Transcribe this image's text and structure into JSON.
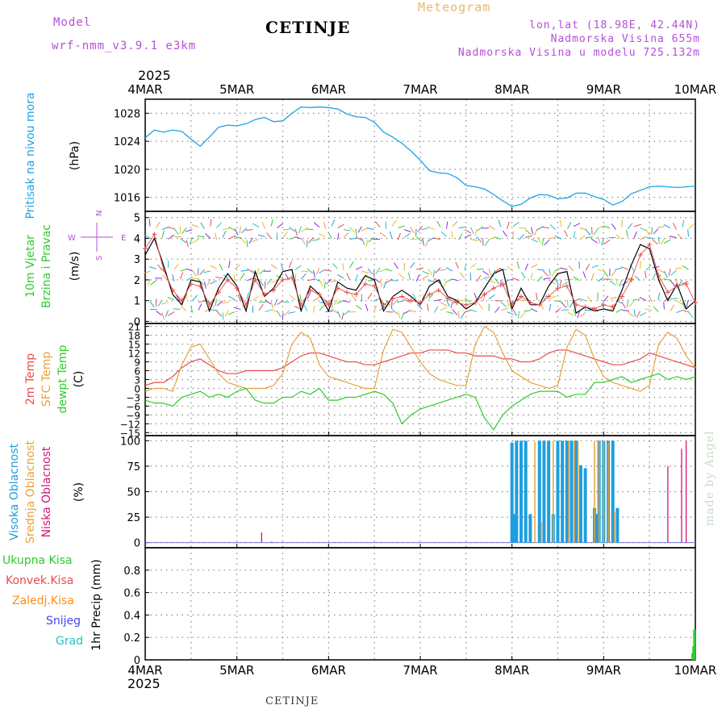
{
  "header": {
    "model_label": "Model",
    "model_name": "wrf-nmm_v3.9.1 e3km",
    "station": "CETINJE",
    "meteogram": "Meteogram",
    "lonlat": "lon,lat (18.98E, 42.44N)",
    "elevation": "Nadmorska Visina 655m",
    "model_elevation": "Nadmorska Visina u modelu 725.132m",
    "year_top": "2025",
    "year_bottom": "2025"
  },
  "footer": {
    "station": "CETINJE",
    "credit": "made by Angel"
  },
  "colors": {
    "pressure": "#1ca3e6",
    "speed": "#000000",
    "gust": "#e84b4b",
    "t2m": "#e84b4b",
    "sfc": "#e8a23a",
    "dew": "#2ecc2e",
    "high": "#1c9fe0",
    "mid": "#e8a23a",
    "low": "#d4157a",
    "total": "#2ecc2e",
    "conv": "#e84b4b",
    "frz": "#ff8c1a",
    "snow": "#4444ee",
    "grad": "#22c4c4"
  },
  "chart_data": [
    {
      "panel": "pressure",
      "type": "line",
      "x_ticks": [
        "4MAR",
        "5MAR",
        "6MAR",
        "7MAR",
        "8MAR",
        "9MAR",
        "10MAR"
      ],
      "ylabel_lines": [
        "Pritisak na nivou mora",
        "(hPa)"
      ],
      "ylim": [
        1014,
        1030
      ],
      "yticks": [
        1016,
        1020,
        1024,
        1028
      ],
      "series": [
        {
          "name": "Pritisak na nivou mora",
          "x": [
            0,
            0.1,
            0.2,
            0.3,
            0.4,
            0.5,
            0.6,
            0.7,
            0.8,
            0.9,
            1.0,
            1.1,
            1.2,
            1.3,
            1.4,
            1.5,
            1.6,
            1.7,
            1.8,
            1.9,
            2.0,
            2.1,
            2.2,
            2.3,
            2.4,
            2.5,
            2.6,
            2.7,
            2.8,
            2.9,
            3.0,
            3.1,
            3.2,
            3.3,
            3.4,
            3.5,
            3.6,
            3.7,
            3.8,
            3.9,
            4.0,
            4.1,
            4.2,
            4.3,
            4.4,
            4.5,
            4.6,
            4.7,
            4.8,
            4.9,
            5.0,
            5.1,
            5.2,
            5.3,
            5.4,
            5.5,
            5.6,
            5.7,
            5.8,
            5.9,
            6.0
          ],
          "values": [
            1024.5,
            1025.6,
            1025.3,
            1025.6,
            1025.4,
            1024.3,
            1023.3,
            1024.6,
            1026.0,
            1026.3,
            1026.2,
            1026.5,
            1027.1,
            1027.4,
            1026.8,
            1026.9,
            1028.0,
            1028.9,
            1028.8,
            1028.9,
            1028.8,
            1028.6,
            1027.9,
            1027.5,
            1027.4,
            1026.7,
            1025.3,
            1024.6,
            1023.7,
            1022.6,
            1021.3,
            1019.8,
            1019.5,
            1019.4,
            1018.8,
            1017.7,
            1017.5,
            1017.2,
            1016.4,
            1015.5,
            1014.7,
            1015.0,
            1015.9,
            1016.4,
            1016.3,
            1015.8,
            1015.9,
            1016.6,
            1016.6,
            1016.1,
            1015.7,
            1014.9,
            1015.4,
            1016.5,
            1017.0,
            1017.5,
            1017.6,
            1017.5,
            1017.4,
            1017.5,
            1017.6
          ]
        }
      ]
    },
    {
      "panel": "wind",
      "type": "line",
      "x_ticks": [
        "4MAR",
        "5MAR",
        "6MAR",
        "7MAR",
        "8MAR",
        "9MAR",
        "10MAR"
      ],
      "ylabel_lines": [
        "10m Vjetar",
        "Brzina i Pravac",
        "(m/s)"
      ],
      "compass": {
        "n": "N",
        "s": "S",
        "w": "W",
        "e": "E"
      },
      "ylim": [
        -0.1,
        5.3
      ],
      "yticks": [
        0,
        1,
        2,
        3,
        4,
        5
      ],
      "series": [
        {
          "name": "Brzina vjetra",
          "values": [
            3.2,
            4.0,
            2.7,
            1.3,
            0.8,
            2.0,
            1.9,
            0.5,
            1.6,
            2.3,
            1.7,
            0.5,
            2.4,
            1.2,
            1.6,
            2.4,
            2.5,
            0.5,
            1.7,
            1.3,
            0.5,
            1.9,
            1.6,
            1.5,
            2.2,
            2.0,
            0.5,
            1.2,
            1.5,
            1.2,
            0.8,
            1.7,
            2.0,
            1.2,
            1.0,
            0.6,
            0.9,
            1.6,
            2.3,
            2.5,
            0.6,
            1.6,
            0.8,
            0.8,
            1.7,
            2.3,
            2.4,
            0.4,
            0.7,
            0.5,
            0.6,
            0.5,
            1.5,
            2.7,
            3.7,
            3.5,
            2.0,
            1.0,
            1.8,
            0.6,
            1.0
          ]
        },
        {
          "name": "Udari",
          "values": [
            3.5,
            4.2,
            2.5,
            1.5,
            1.0,
            1.8,
            1.7,
            0.8,
            1.4,
            2.0,
            1.6,
            0.8,
            2.0,
            1.3,
            1.5,
            2.0,
            2.1,
            0.8,
            1.5,
            1.3,
            0.8,
            1.6,
            1.4,
            1.3,
            1.8,
            1.7,
            0.8,
            1.1,
            1.2,
            1.0,
            0.9,
            1.3,
            1.5,
            1.1,
            0.9,
            0.8,
            0.9,
            1.3,
            1.6,
            1.8,
            0.8,
            1.2,
            0.9,
            0.8,
            1.2,
            1.6,
            1.7,
            0.8,
            0.7,
            0.6,
            0.8,
            0.7,
            1.2,
            2.0,
            3.2,
            3.7,
            2.2,
            1.4,
            1.7,
            1.8,
            0.9
          ]
        }
      ],
      "arrow_rows": [
        0.5,
        1,
        2,
        2.5,
        4,
        4.5
      ]
    },
    {
      "panel": "temperature",
      "type": "line",
      "x_ticks": [
        "4MAR",
        "5MAR",
        "6MAR",
        "7MAR",
        "8MAR",
        "9MAR",
        "10MAR"
      ],
      "ylabel_lines": [
        "2m Temp",
        "SFC Temp",
        "dewpt Temp",
        "(C)"
      ],
      "ylim": [
        -16,
        22
      ],
      "yticks": [
        -15,
        -12,
        -9,
        -6,
        -3,
        0,
        3,
        6,
        9,
        12,
        15,
        18,
        21
      ],
      "series": [
        {
          "name": "2m Temp",
          "values": [
            1,
            2,
            2,
            4,
            7,
            9,
            10,
            8,
            6,
            5,
            5,
            6,
            6,
            6,
            6,
            7,
            9,
            11,
            12,
            12,
            11,
            10,
            9,
            9,
            8,
            8,
            9,
            10,
            11,
            12,
            12,
            13,
            13,
            13,
            12,
            12,
            11,
            11,
            11,
            10,
            10,
            9,
            9,
            10,
            12,
            13,
            13,
            12,
            11,
            10,
            9,
            8,
            8,
            9,
            10,
            12,
            11,
            10,
            9,
            8,
            7
          ]
        },
        {
          "name": "SFC Temp",
          "values": [
            -1,
            0,
            0,
            -1,
            8,
            14,
            15,
            10,
            5,
            2,
            1,
            0,
            0,
            0,
            1,
            5,
            15,
            19,
            17,
            8,
            4,
            3,
            2,
            1,
            0,
            0,
            13,
            20,
            19,
            14,
            9,
            5,
            3,
            2,
            1,
            1,
            15,
            21,
            19,
            12,
            6,
            4,
            2,
            1,
            0,
            1,
            14,
            20,
            18,
            10,
            4,
            2,
            1,
            0,
            -1,
            1,
            15,
            19,
            17,
            11,
            7
          ]
        },
        {
          "name": "dewpt Temp",
          "values": [
            -4,
            -5,
            -5,
            -6,
            -3,
            -2,
            -1,
            -3,
            -2,
            -3,
            -1,
            0,
            -4,
            -5,
            -5,
            -3,
            -3,
            -1,
            -2,
            0,
            -4,
            -4,
            -3,
            -3,
            -2,
            -1,
            -2,
            -5,
            -12,
            -9,
            -7,
            -6,
            -5,
            -4,
            -3,
            -2,
            -3,
            -10,
            -14,
            -9,
            -6,
            -4,
            -2,
            -1,
            -1,
            -1,
            -3,
            -2,
            -2,
            2,
            2,
            3,
            4,
            2,
            3,
            4,
            5,
            3,
            4,
            3,
            4
          ]
        }
      ]
    },
    {
      "panel": "cloud",
      "type": "bar",
      "x_ticks": [
        "4MAR",
        "5MAR",
        "6MAR",
        "7MAR",
        "8MAR",
        "9MAR",
        "10MAR"
      ],
      "ylabel_lines": [
        "Visoka Oblacnost",
        "Srednja Oblacnost",
        "Niska Oblacnost",
        "(%)"
      ],
      "ylim": [
        -5,
        105
      ],
      "yticks": [
        0,
        25,
        50,
        75,
        100
      ],
      "series": [
        {
          "name": "Visoka Oblacnost",
          "x": [
            4.0,
            4.02,
            4.05,
            4.1,
            4.15,
            4.2,
            4.3,
            4.35,
            4.4,
            4.45,
            4.5,
            4.55,
            4.6,
            4.65,
            4.7,
            4.75,
            4.8,
            4.85,
            4.9,
            4.92,
            4.95,
            5.0,
            5.05,
            5.1,
            5.15
          ],
          "values": [
            98,
            28,
            100,
            100,
            100,
            28,
            100,
            100,
            100,
            28,
            100,
            100,
            100,
            100,
            100,
            76,
            73,
            0,
            34,
            28,
            100,
            100,
            100,
            100,
            34
          ]
        },
        {
          "name": "Srednja Oblacnost",
          "x": [
            4.25,
            4.32,
            4.45,
            4.62,
            4.68,
            4.72,
            4.9,
            4.95,
            5.0,
            5.05,
            5.12
          ],
          "values": [
            99,
            20,
            100,
            100,
            100,
            100,
            100,
            100,
            100,
            98,
            30
          ]
        },
        {
          "name": "Niska Oblacnost",
          "x": [
            1.27,
            1.38,
            5.7,
            5.85,
            5.9
          ],
          "values": [
            10,
            1,
            75,
            92,
            100
          ]
        }
      ]
    },
    {
      "panel": "precip",
      "type": "bar",
      "x_ticks": [
        "4MAR",
        "5MAR",
        "6MAR",
        "7MAR",
        "8MAR",
        "9MAR",
        "10MAR"
      ],
      "ylabel_lines": [
        "1hr Precip (mm)"
      ],
      "legend": [
        "Ukupna Kisa",
        "Konvek.Kisa",
        "Zaledj.Kisa",
        "Snijeg",
        "Grad"
      ],
      "ylim": [
        0,
        1.0
      ],
      "yticks": [
        0,
        0.2,
        0.4,
        0.6,
        0.8
      ],
      "series": [
        {
          "name": "Ukupna Kisa",
          "x": [
            5.97,
            5.98,
            5.99
          ],
          "values": [
            0.06,
            0.12,
            0.27
          ]
        }
      ]
    }
  ]
}
